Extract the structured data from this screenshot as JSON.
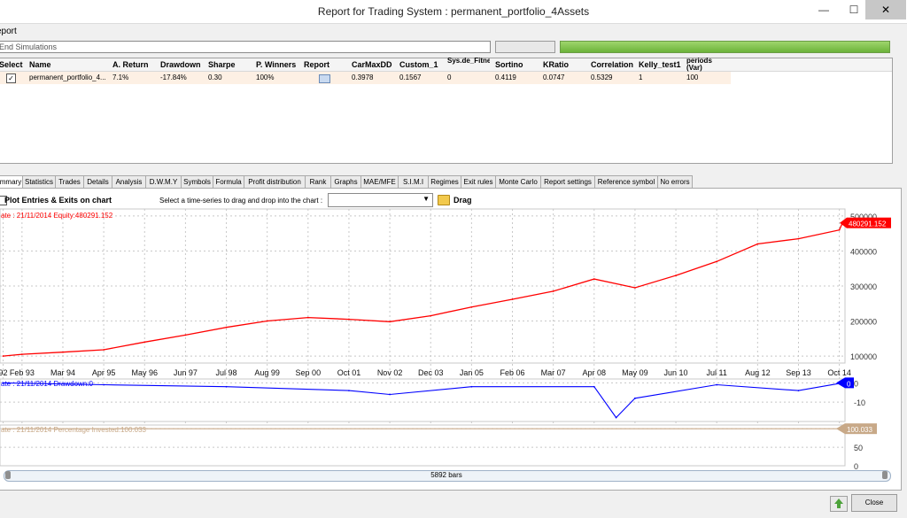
{
  "window": {
    "title": "Report for Trading System : permanent_portfolio_4Assets",
    "minimize": "—",
    "maximize": "☐",
    "close": "✕"
  },
  "report": {
    "group_label": "eport",
    "progress_text": "End Simulations",
    "columns": [
      "Select",
      "Name",
      "A. Return",
      "Drawdown",
      "Sharpe",
      "P. Winners",
      "Report",
      "CarMaxDD",
      "Custom_1",
      "Sys.de_Fitness",
      "Sortino",
      "KRatio",
      "Correlation",
      "Kelly_test1",
      "periods (Var)"
    ],
    "row": {
      "checked": "✓",
      "name": "permanent_portfolio_4...",
      "a_return": "7.1%",
      "drawdown": "-17.84%",
      "sharpe": "0.30",
      "p_winners": "100%",
      "carmaxdd": "0.3978",
      "custom_1": "0.1567",
      "sys_fitness": "0",
      "sortino": "0.4119",
      "kratio": "0.0747",
      "correlation": "0.5329",
      "kelly": "1",
      "periods": "100"
    }
  },
  "tabs": [
    "mmary",
    "Statistics",
    "Trades",
    "Details",
    "Analysis",
    "D.W.M.Y",
    "Symbols",
    "Formula",
    "Profit distribution",
    "Rank",
    "Graphs",
    "MAE/MFE",
    "S.I.M.I",
    "Regimes",
    "Exit rules",
    "Monte Carlo",
    "Report settings",
    "Reference symbol",
    "No errors"
  ],
  "toolbar": {
    "plot_entries": "Plot Entries & Exits on chart",
    "select_label": "Select a time-series to drag and drop into the chart :",
    "drag": "Drag"
  },
  "chart_data": [
    {
      "type": "line",
      "title": "",
      "legend": "ate : 21/11/2014   Equity:480291.152",
      "series": [
        {
          "name": "Equity",
          "color": "#ff0000"
        }
      ],
      "x": [
        "1992-08",
        "1993-02",
        "1994-03",
        "1995-04",
        "1996-05",
        "1997-06",
        "1998-07",
        "1999-08",
        "2000-09",
        "2001-10",
        "2002-11",
        "2003-12",
        "2005-01",
        "2006-02",
        "2007-03",
        "2008-04",
        "2009-05",
        "2010-06",
        "2011-07",
        "2012-08",
        "2013-09",
        "2014-10",
        "2014-11"
      ],
      "values": [
        100000,
        105000,
        111000,
        118000,
        140000,
        160000,
        182000,
        200000,
        210000,
        205000,
        198000,
        215000,
        240000,
        262000,
        285000,
        320000,
        295000,
        330000,
        370000,
        420000,
        435000,
        460000,
        480291
      ],
      "x_tick_labels": [
        "92",
        "Feb 93",
        "Mar 94",
        "Apr 95",
        "May 96",
        "Jun 97",
        "Jul 98",
        "Aug 99",
        "Sep 00",
        "Oct 01",
        "Nov 02",
        "Dec 03",
        "Jan 05",
        "Feb 06",
        "Mar 07",
        "Apr 08",
        "May 09",
        "Jun 10",
        "Jul 11",
        "Aug 12",
        "Sep 13",
        "Oct 14"
      ],
      "y_ticks": [
        "500000",
        "400000",
        "300000",
        "200000",
        "100000"
      ],
      "last_value_label": "480291.152",
      "grid": true
    },
    {
      "type": "line",
      "legend": "ate : 21/11/2014   Drawdown:0",
      "series": [
        {
          "name": "Drawdown",
          "color": "#0000ff"
        }
      ],
      "x": [
        "1992-08",
        "1995-04",
        "1998-07",
        "2001-10",
        "2002-11",
        "2005-01",
        "2008-04",
        "2008-11",
        "2009-05",
        "2011-07",
        "2013-09",
        "2014-11"
      ],
      "values": [
        0,
        -1,
        -2,
        -4,
        -6,
        -2,
        -2,
        -18,
        -8,
        -1,
        -4,
        0
      ],
      "y_ticks": [
        "0",
        "-10"
      ],
      "last_value_label": "0",
      "grid": true
    },
    {
      "type": "line",
      "legend": "ate : 21/11/2014   Percentage Invested:100.033",
      "series": [
        {
          "name": "Percentage Invested",
          "color": "#c8a988"
        }
      ],
      "x": [
        "1992-08",
        "2014-11"
      ],
      "values": [
        100.033,
        100.033
      ],
      "y_ticks": [
        "100",
        "50",
        "0"
      ],
      "last_value_label": "100.033",
      "grid": true
    }
  ],
  "footer": {
    "bars": "5892 bars",
    "close": "Close"
  }
}
